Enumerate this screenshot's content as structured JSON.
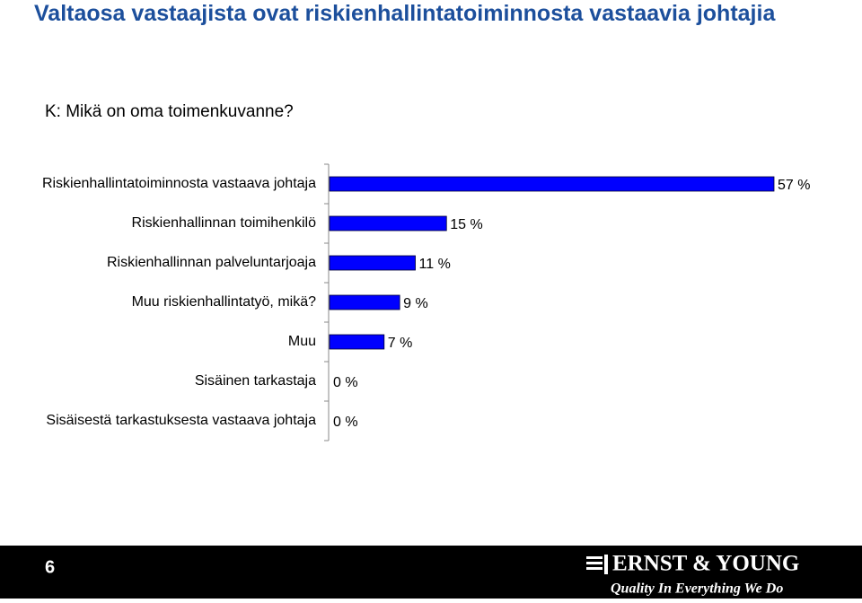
{
  "title": "Valtaosa vastaajista ovat riskienhallintatoiminnosta vastaavia johtajia",
  "question": "K: Mikä on oma toimenkuvanne?",
  "chart_data": {
    "type": "hbar",
    "categories": [
      "Riskienhallintatoiminnosta vastaava johtaja",
      "Riskienhallinnan toimihenkilö",
      "Riskienhallinnan palveluntarjoaja",
      "Muu riskienhallintatyö, mikä?",
      "Muu",
      "Sisäinen tarkastaja",
      "Sisäisestä tarkastuksesta vastaava johtaja"
    ],
    "values": [
      57,
      15,
      11,
      9,
      7,
      0,
      0
    ],
    "value_labels": [
      "57 %",
      "15 %",
      "11 %",
      "9 %",
      "7 %",
      "0 %",
      "0 %"
    ],
    "color": "#0000ff"
  },
  "footer": {
    "page_number": "6",
    "logo": "ERNST & YOUNG",
    "tagline": "Quality In Everything We Do"
  }
}
